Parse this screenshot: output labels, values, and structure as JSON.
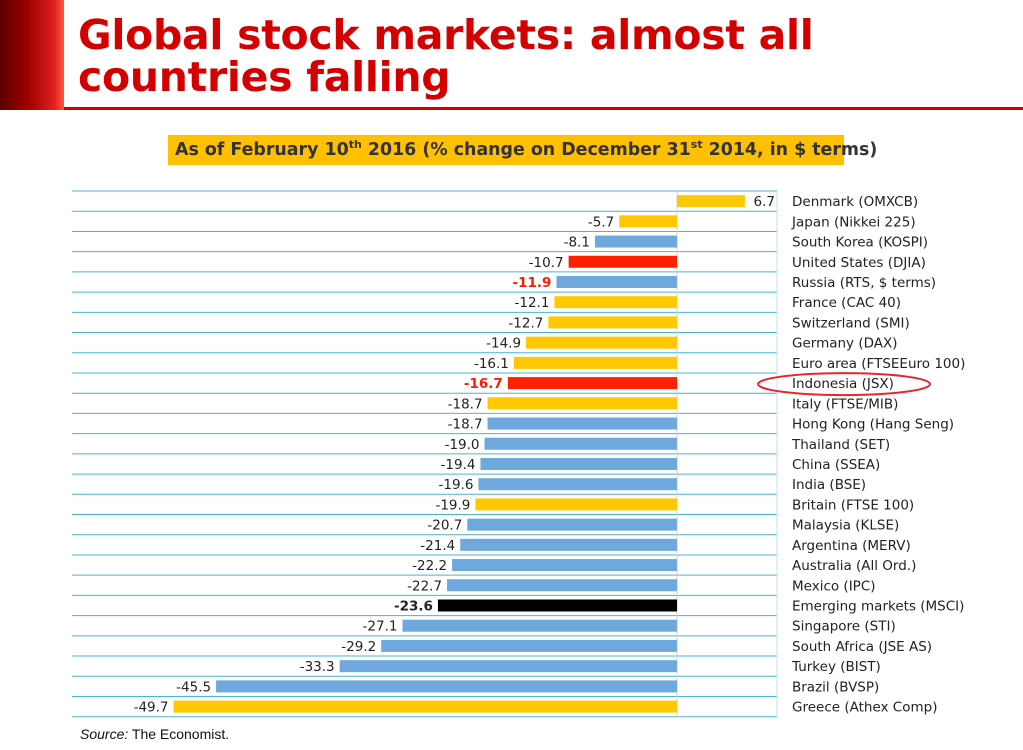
{
  "title": "Global stock markets: almost all countries falling",
  "subtitle": {
    "prefix": "As of February 10",
    "sup1": "th",
    "middle": " 2016 (% change on December 31",
    "sup2": "st",
    "suffix": " 2014, in $ terms)"
  },
  "source": {
    "label": "Source:",
    "text": " The Economist."
  },
  "colors": {
    "title": "#d40000",
    "subtitle_bg": "#ffc000",
    "blue": "#6fa8dc",
    "yellow": "#ffc800",
    "red": "#ff2000",
    "black": "#000000",
    "gridline": "#4ab4d6",
    "highlight_ellipse": "#e8262a"
  },
  "chart_data": {
    "type": "bar",
    "orientation": "horizontal",
    "xlim": [
      -51,
      8
    ],
    "grid": true,
    "categories": [
      "Denmark (OMXCB)",
      "Japan (Nikkei 225)",
      "South Korea (KOSPI)",
      "United States (DJIA)",
      "Russia (RTS, $ terms)",
      "France (CAC 40)",
      "Switzerland (SMI)",
      "Germany (DAX)",
      "Euro area (FTSEEuro 100)",
      "Indonesia (JSX)",
      "Italy (FTSE/MIB)",
      "Hong Kong (Hang Seng)",
      "Thailand (SET)",
      "China (SSEA)",
      "India (BSE)",
      "Britain (FTSE 100)",
      "Malaysia (KLSE)",
      "Argentina (MERV)",
      "Australia (All Ord.)",
      "Mexico (IPC)",
      "Emerging markets (MSCI)",
      "Singapore (STI)",
      "South Africa (JSE AS)",
      "Turkey (BIST)",
      "Brazil (BVSP)",
      "Greece (Athex Comp)"
    ],
    "values": [
      6.7,
      -5.7,
      -8.1,
      -10.7,
      -11.9,
      -12.1,
      -12.7,
      -14.9,
      -16.1,
      -16.7,
      -18.7,
      -18.7,
      -19.0,
      -19.4,
      -19.6,
      -19.9,
      -20.7,
      -21.4,
      -22.2,
      -22.7,
      -23.6,
      -27.1,
      -29.2,
      -33.3,
      -45.5,
      -49.7
    ],
    "value_labels": [
      "6.7",
      "-5.7",
      "-8.1",
      "-10.7",
      "-11.9",
      "-12.1",
      "-12.7",
      "-14.9",
      "-16.1",
      "-16.7",
      "-18.7",
      "-18.7",
      "-19.0",
      "-19.4",
      "-19.6",
      "-19.9",
      "-20.7",
      "-21.4",
      "-22.2",
      "-22.7",
      "-23.6",
      "-27.1",
      "-29.2",
      "-33.3",
      "-45.5",
      "-49.7"
    ],
    "bar_colors": [
      "yellow",
      "yellow",
      "blue",
      "red",
      "blue",
      "yellow",
      "yellow",
      "yellow",
      "yellow",
      "red",
      "yellow",
      "blue",
      "blue",
      "blue",
      "blue",
      "yellow",
      "blue",
      "blue",
      "blue",
      "blue",
      "black",
      "blue",
      "blue",
      "blue",
      "blue",
      "yellow"
    ],
    "label_styles": [
      "normal",
      "normal",
      "normal",
      "normal",
      "red-bold",
      "normal",
      "normal",
      "normal",
      "normal",
      "red-bold",
      "normal",
      "normal",
      "normal",
      "normal",
      "normal",
      "normal",
      "normal",
      "normal",
      "normal",
      "normal",
      "bold",
      "normal",
      "normal",
      "normal",
      "normal",
      "normal"
    ],
    "highlighted_category": "Indonesia (JSX)"
  }
}
